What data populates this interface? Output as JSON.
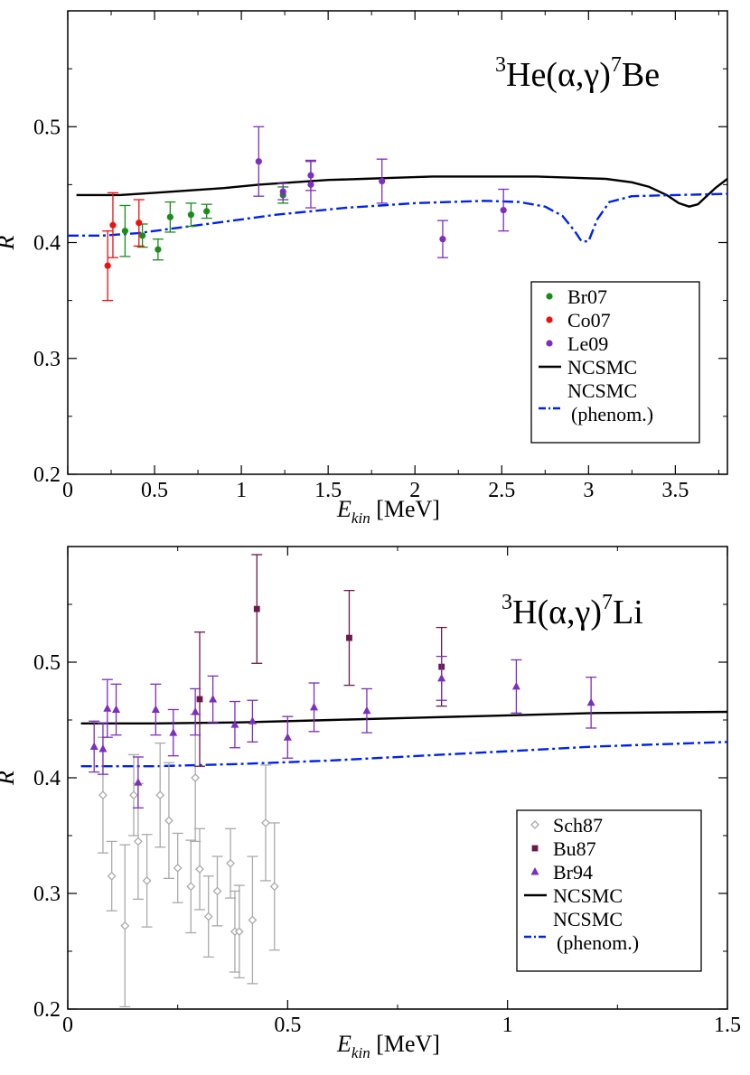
{
  "chart_data": [
    {
      "type": "scatter",
      "reaction": {
        "pre": "3",
        "a": "He(",
        "alpha": "α",
        "comma": ",",
        "gamma": "γ",
        "close": ")",
        "post": "7",
        "b": "Be"
      },
      "xlabel": {
        "var": "E",
        "sub": "kin",
        "unit": "[MeV]"
      },
      "ylabel": "R",
      "xlim": [
        0,
        3.8
      ],
      "ylim": [
        0.2,
        0.6
      ],
      "xticks": [
        0,
        0.5,
        1,
        1.5,
        2,
        2.5,
        3,
        3.5
      ],
      "xtick_labels": [
        "0",
        "0.5",
        "1",
        "1.5",
        "2",
        "2.5",
        "3",
        "3.5"
      ],
      "yticks": [
        0.2,
        0.3,
        0.4,
        0.5
      ],
      "ytick_labels": [
        "0.2",
        "0.3",
        "0.4",
        "0.5"
      ],
      "legend_position": "right",
      "series": [
        {
          "name": "Br07",
          "kind": "points",
          "marker": "circle",
          "color": "#1a8c1a",
          "points": [
            [
              0.33,
              0.41,
              0.022
            ],
            [
              0.43,
              0.406,
              0.01
            ],
            [
              0.52,
              0.394,
              0.009
            ],
            [
              0.59,
              0.422,
              0.013
            ],
            [
              0.71,
              0.424,
              0.01
            ],
            [
              0.8,
              0.427,
              0.006
            ],
            [
              1.24,
              0.441,
              0.007
            ]
          ]
        },
        {
          "name": "Co07",
          "kind": "points",
          "marker": "circle",
          "color": "#ee1111",
          "points": [
            [
              0.23,
              0.38,
              0.03
            ],
            [
              0.26,
              0.415,
              0.028
            ],
            [
              0.41,
              0.417,
              0.02
            ]
          ]
        },
        {
          "name": "Le09",
          "kind": "points",
          "marker": "circle",
          "color": "#7b2fbe",
          "points": [
            [
              1.1,
              0.47,
              0.03
            ],
            [
              1.24,
              0.444,
              0.007
            ],
            [
              1.4,
              0.458,
              0.013
            ],
            [
              1.4,
              0.45,
              0.02
            ],
            [
              1.81,
              0.453,
              0.019
            ],
            [
              2.16,
              0.403,
              0.016
            ],
            [
              2.51,
              0.428,
              0.018
            ]
          ]
        },
        {
          "name": "NCSMC",
          "kind": "line",
          "style": "solid",
          "color": "#000000",
          "x": [
            0.05,
            0.3,
            0.5,
            0.7,
            0.9,
            1.1,
            1.3,
            1.5,
            1.7,
            1.9,
            2.1,
            2.3,
            2.5,
            2.7,
            2.9,
            3.1,
            3.25,
            3.35,
            3.45,
            3.52,
            3.58,
            3.63,
            3.68,
            3.73,
            3.8
          ],
          "y": [
            0.441,
            0.441,
            0.443,
            0.445,
            0.447,
            0.45,
            0.452,
            0.454,
            0.455,
            0.456,
            0.457,
            0.457,
            0.457,
            0.457,
            0.456,
            0.455,
            0.452,
            0.448,
            0.441,
            0.434,
            0.431,
            0.433,
            0.44,
            0.447,
            0.455
          ]
        },
        {
          "name": "NCSMC (phenom.)",
          "label_line1": "NCSMC",
          "label_line2": "(phenom.)",
          "kind": "line",
          "style": "dashdot",
          "color": "#0022ee",
          "x": [
            0.0,
            0.2,
            0.4,
            0.6,
            0.8,
            1.0,
            1.2,
            1.4,
            1.6,
            1.8,
            2.0,
            2.2,
            2.4,
            2.6,
            2.75,
            2.85,
            2.92,
            2.96,
            3.0,
            3.05,
            3.12,
            3.25,
            3.5,
            3.8
          ],
          "y": [
            0.406,
            0.406,
            0.408,
            0.412,
            0.416,
            0.42,
            0.424,
            0.427,
            0.43,
            0.432,
            0.434,
            0.435,
            0.436,
            0.435,
            0.431,
            0.423,
            0.41,
            0.401,
            0.401,
            0.42,
            0.435,
            0.44,
            0.441,
            0.442
          ]
        }
      ]
    },
    {
      "type": "scatter",
      "reaction": {
        "pre": "3",
        "a": "H(",
        "alpha": "α",
        "comma": ",",
        "gamma": "γ",
        "close": ")",
        "post": "7",
        "b": "Li"
      },
      "xlabel": {
        "var": "E",
        "sub": "kin",
        "unit": "[MeV]"
      },
      "ylabel": "R",
      "xlim": [
        0,
        1.5
      ],
      "ylim": [
        0.2,
        0.6
      ],
      "xticks": [
        0,
        0.5,
        1,
        1.5
      ],
      "xtick_labels": [
        "0",
        "0.5",
        "1",
        "1.5"
      ],
      "yticks": [
        0.2,
        0.3,
        0.4,
        0.5
      ],
      "ytick_labels": [
        "0.2",
        "0.3",
        "0.4",
        "0.5"
      ],
      "legend_position": "right",
      "series": [
        {
          "name": "Sch87",
          "kind": "points",
          "marker": "diamond",
          "color": "#aaaaaa",
          "points": [
            [
              0.08,
              0.385,
              0.05
            ],
            [
              0.1,
              0.315,
              0.03
            ],
            [
              0.13,
              0.272,
              0.07
            ],
            [
              0.15,
              0.385,
              0.035
            ],
            [
              0.16,
              0.345,
              0.05
            ],
            [
              0.18,
              0.311,
              0.04
            ],
            [
              0.21,
              0.385,
              0.045
            ],
            [
              0.23,
              0.363,
              0.05
            ],
            [
              0.25,
              0.322,
              0.03
            ],
            [
              0.28,
              0.306,
              0.04
            ],
            [
              0.29,
              0.4,
              0.055
            ],
            [
              0.3,
              0.321,
              0.035
            ],
            [
              0.32,
              0.28,
              0.035
            ],
            [
              0.34,
              0.302,
              0.03
            ],
            [
              0.37,
              0.326,
              0.03
            ],
            [
              0.38,
              0.267,
              0.035
            ],
            [
              0.39,
              0.267,
              0.04
            ],
            [
              0.42,
              0.277,
              0.055
            ],
            [
              0.45,
              0.361,
              0.05
            ],
            [
              0.47,
              0.306,
              0.055
            ]
          ]
        },
        {
          "name": "Bu87",
          "kind": "points",
          "marker": "square",
          "color": "#6a1a4a",
          "points": [
            [
              0.3,
              0.468,
              0.058
            ],
            [
              0.43,
              0.546,
              0.047
            ],
            [
              0.64,
              0.521,
              0.041
            ],
            [
              0.85,
              0.496,
              0.034
            ]
          ]
        },
        {
          "name": "Br94",
          "kind": "points",
          "marker": "triangle",
          "color": "#7b2fbe",
          "points": [
            [
              0.06,
              0.427,
              0.022
            ],
            [
              0.08,
              0.425,
              0.022
            ],
            [
              0.09,
              0.46,
              0.025
            ],
            [
              0.11,
              0.459,
              0.022
            ],
            [
              0.16,
              0.396,
              0.022
            ],
            [
              0.2,
              0.459,
              0.022
            ],
            [
              0.24,
              0.439,
              0.02
            ],
            [
              0.29,
              0.457,
              0.02
            ],
            [
              0.33,
              0.468,
              0.02
            ],
            [
              0.38,
              0.446,
              0.02
            ],
            [
              0.42,
              0.449,
              0.018
            ],
            [
              0.5,
              0.435,
              0.018
            ],
            [
              0.56,
              0.461,
              0.021
            ],
            [
              0.68,
              0.458,
              0.019
            ],
            [
              0.85,
              0.486,
              0.019
            ],
            [
              1.02,
              0.479,
              0.023
            ],
            [
              1.19,
              0.465,
              0.022
            ]
          ]
        },
        {
          "name": "NCSMC",
          "kind": "line",
          "style": "solid",
          "color": "#000000",
          "x": [
            0.03,
            0.2,
            0.4,
            0.6,
            0.8,
            1.0,
            1.2,
            1.5
          ],
          "y": [
            0.447,
            0.447,
            0.448,
            0.45,
            0.452,
            0.454,
            0.456,
            0.457
          ]
        },
        {
          "name": "NCSMC (phenom.)",
          "label_line1": "NCSMC",
          "label_line2": "(phenom.)",
          "kind": "line",
          "style": "dashdot",
          "color": "#0022ee",
          "x": [
            0.03,
            0.2,
            0.4,
            0.6,
            0.8,
            1.0,
            1.2,
            1.5
          ],
          "y": [
            0.41,
            0.41,
            0.412,
            0.415,
            0.419,
            0.423,
            0.427,
            0.431
          ]
        }
      ]
    }
  ]
}
